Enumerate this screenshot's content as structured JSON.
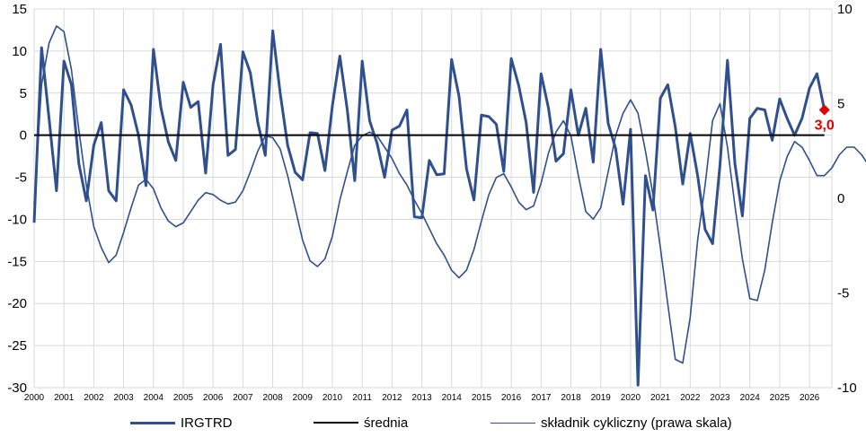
{
  "chart_data": {
    "type": "line",
    "title": "",
    "xlabel": "",
    "ylabel": "",
    "ylim": [
      -30,
      15
    ],
    "y2lim": [
      -10,
      10
    ],
    "yticks": [
      "15",
      "10",
      "5",
      "0",
      "-5",
      "-10",
      "-15",
      "-20",
      "-25",
      "-30"
    ],
    "y2ticks": [
      "10",
      "5",
      "0",
      "-5",
      "-10"
    ],
    "x_start": 2000.0,
    "x_step": 0.25,
    "xticks": [
      "2000",
      "2001",
      "2002",
      "2003",
      "2004",
      "2005",
      "2006",
      "2007",
      "2008",
      "2009",
      "2010",
      "2011",
      "2012",
      "2013",
      "2014",
      "2015",
      "2016",
      "2017",
      "2018",
      "2019",
      "2020",
      "2021",
      "2022",
      "2023",
      "2024",
      "2025",
      "2026"
    ],
    "grid": true,
    "legend_position": "bottom",
    "series": [
      {
        "name": "IRGTRD",
        "axis": "left",
        "color": "#2f4f8f",
        "width": 3,
        "values": [
          -10.4,
          10.4,
          2.0,
          -6.6,
          8.8,
          6.0,
          -3.4,
          -7.8,
          -1.2,
          1.5,
          -6.6,
          -7.8,
          5.4,
          3.6,
          0.0,
          -6.0,
          10.2,
          3.3,
          -0.8,
          -3.0,
          6.3,
          3.3,
          4.0,
          -4.5,
          6.0,
          10.8,
          -2.4,
          -1.7,
          9.9,
          7.4,
          1.5,
          -2.4,
          12.4,
          5.0,
          -1.2,
          -4.4,
          -5.3,
          0.3,
          0.2,
          -4.2,
          3.5,
          9.4,
          3.0,
          -5.4,
          8.8,
          1.7,
          -1.0,
          -5.0,
          0.6,
          1.1,
          3.0,
          -9.7,
          -9.8,
          -3.0,
          -4.7,
          -4.6,
          9.0,
          4.6,
          -4.0,
          -7.7,
          2.4,
          2.2,
          1.3,
          -4.3,
          9.1,
          5.9,
          1.5,
          -6.8,
          7.3,
          3.2,
          -3.1,
          -2.2,
          5.4,
          0.0,
          3.2,
          -3.2,
          10.2,
          1.4,
          -1.6,
          -8.2,
          0.7,
          -29.7,
          -4.8,
          -8.9,
          4.4,
          6.0,
          1.0,
          -5.8,
          0.2,
          -4.8,
          -11.2,
          -12.9,
          -3.5,
          8.9,
          -3.4,
          -9.6,
          2.0,
          3.2,
          3.0,
          -0.6,
          4.3,
          2.0,
          0.0,
          2.0,
          5.6,
          7.3,
          3.0
        ]
      },
      {
        "name": "średnia",
        "axis": "left",
        "color": "#000000",
        "width": 2,
        "values": [
          0.0,
          0.0
        ]
      },
      {
        "name": "składnik cykliczny (prawa skala)",
        "axis": "right",
        "color": "#2f4f8f",
        "width": 1.6,
        "values": [
          -0.3,
          6.0,
          8.2,
          9.1,
          8.8,
          6.8,
          3.6,
          0.7,
          -1.5,
          -2.6,
          -3.4,
          -3.0,
          -1.8,
          -0.5,
          0.7,
          1.0,
          0.5,
          -0.5,
          -1.2,
          -1.5,
          -1.3,
          -0.7,
          -0.1,
          0.3,
          0.2,
          -0.1,
          -0.3,
          -0.2,
          0.4,
          1.4,
          2.5,
          3.3,
          3.2,
          2.6,
          1.2,
          -0.5,
          -2.2,
          -3.3,
          -3.6,
          -3.2,
          -2.0,
          -0.1,
          1.4,
          2.8,
          3.3,
          3.5,
          3.3,
          2.7,
          2.1,
          1.3,
          0.7,
          -0.1,
          -0.8,
          -1.6,
          -2.4,
          -3.0,
          -3.8,
          -4.2,
          -3.8,
          -2.7,
          -1.2,
          0.2,
          1.1,
          1.3,
          0.6,
          -0.2,
          -0.6,
          -0.4,
          0.8,
          2.4,
          3.5,
          4.1,
          3.3,
          1.2,
          -0.7,
          -1.1,
          -0.5,
          1.4,
          3.3,
          4.5,
          5.2,
          4.5,
          2.5,
          0.2,
          -2.6,
          -5.6,
          -8.5,
          -8.7,
          -6.3,
          -2.2,
          0.7,
          4.1,
          5.0,
          2.7,
          -0.4,
          -3.2,
          -5.3,
          -5.4,
          -3.8,
          -1.3,
          0.9,
          2.2,
          3.0,
          2.7,
          2.0,
          1.2,
          1.2,
          1.6,
          2.3,
          2.7,
          2.7,
          2.3,
          1.7
        ]
      }
    ],
    "annotation": {
      "label": "3,0",
      "value": 3.0,
      "series": "IRGTRD",
      "color": "#e00000"
    }
  }
}
